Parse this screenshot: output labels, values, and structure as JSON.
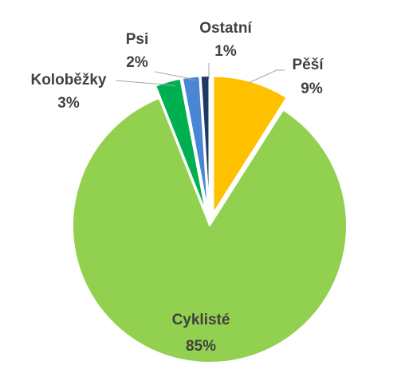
{
  "chart_data": {
    "type": "pie",
    "exploded": true,
    "legend": "none",
    "slices": [
      {
        "label": "Pěší",
        "value": 9,
        "value_label": "9%",
        "color": "#ffc000"
      },
      {
        "label": "Cyklisté",
        "value": 85,
        "value_label": "85%",
        "color": "#92d050"
      },
      {
        "label": "Koloběžky",
        "value": 3,
        "value_label": "3%",
        "color": "#00b050"
      },
      {
        "label": "Psi",
        "value": 2,
        "value_label": "2%",
        "color": "#4a86d4"
      },
      {
        "label": "Ostatní",
        "value": 1,
        "value_label": "1%",
        "color": "#1f3864"
      }
    ]
  }
}
